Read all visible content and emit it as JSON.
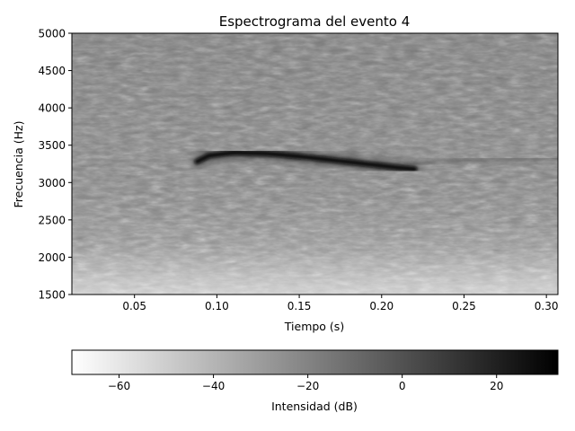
{
  "chart_data": {
    "type": "heatmap",
    "title": "Espectrograma del evento 4",
    "xlabel": "Tiempo (s)",
    "ylabel": "Frecuencia (Hz)",
    "xlim": [
      0.012,
      0.307
    ],
    "ylim": [
      1500,
      5000
    ],
    "xticks": [
      0.05,
      0.1,
      0.15,
      0.2,
      0.25,
      0.3
    ],
    "xtick_labels": [
      "0.05",
      "0.10",
      "0.15",
      "0.20",
      "0.25",
      "0.30"
    ],
    "yticks": [
      1500,
      2000,
      2500,
      3000,
      3500,
      4000,
      4500,
      5000
    ],
    "ytick_labels": [
      "1500",
      "2000",
      "2500",
      "3000",
      "3500",
      "4000",
      "4500",
      "5000"
    ],
    "colormap": "gray_r",
    "colorbar": {
      "label": "Intensidad (dB)",
      "range": [
        -70,
        33
      ],
      "ticks": [
        -60,
        -40,
        -20,
        0,
        20
      ],
      "tick_labels": [
        "−60",
        "−40",
        "−20",
        "0",
        "20"
      ],
      "orientation": "horizontal",
      "placement": "bottom"
    },
    "features": [
      {
        "kind": "tonal-trace",
        "intensity_db": 30,
        "points": [
          [
            0.088,
            3280
          ],
          [
            0.095,
            3360
          ],
          [
            0.11,
            3400
          ],
          [
            0.13,
            3390
          ],
          [
            0.15,
            3350
          ],
          [
            0.17,
            3300
          ],
          [
            0.19,
            3250
          ],
          [
            0.21,
            3200
          ],
          [
            0.22,
            3180
          ]
        ]
      },
      {
        "kind": "faint-trace",
        "intensity_db": 0,
        "points": [
          [
            0.22,
            3250
          ],
          [
            0.25,
            3300
          ],
          [
            0.307,
            3320
          ]
        ]
      }
    ],
    "background_db": {
      "low_freq_region": -55,
      "mid_region": -25,
      "high_freq_region": -30
    }
  }
}
